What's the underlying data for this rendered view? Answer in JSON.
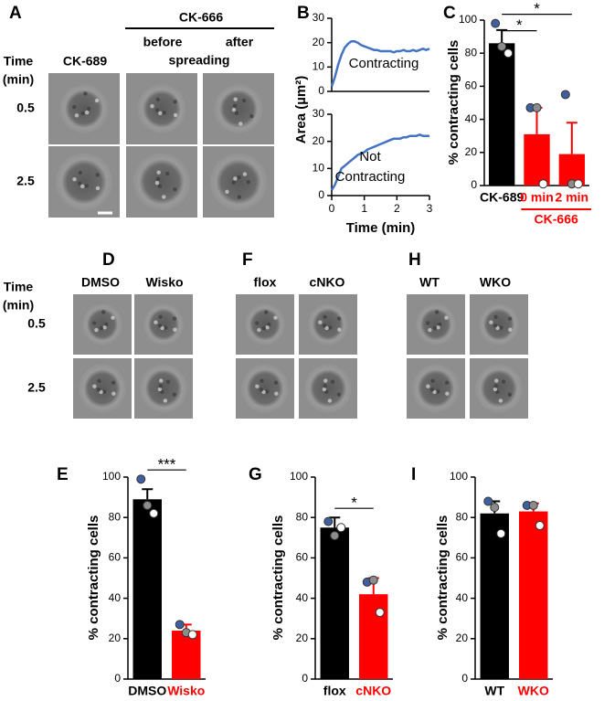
{
  "chart_data": [
    {
      "type": "line",
      "panel": "B",
      "ylabel": "Area (µm²)",
      "annotation": [
        "Contracting"
      ],
      "color": "#4472c4",
      "x": [
        0,
        0.1,
        0.2,
        0.3,
        0.4,
        0.5,
        0.6,
        0.7,
        0.8,
        0.9,
        1,
        1.1,
        1.2,
        1.3,
        1.4,
        1.5,
        1.6,
        1.7,
        1.8,
        1.9,
        2,
        2.1,
        2.2,
        2.3,
        2.4,
        2.5,
        2.6,
        2.7,
        2.8,
        2.9,
        3
      ],
      "values": [
        2,
        6,
        11,
        15,
        18,
        19.5,
        20.5,
        20.5,
        20,
        19,
        18.5,
        18,
        17.5,
        17,
        17,
        16.5,
        16.5,
        16.5,
        16.5,
        16,
        16.5,
        16.5,
        17,
        16.5,
        16.5,
        17,
        16.5,
        17,
        17.5,
        17,
        17.5
      ],
      "xlim": [
        0,
        3
      ],
      "ylim": [
        0,
        30
      ],
      "yticks": [
        0,
        10,
        20,
        30
      ]
    },
    {
      "type": "line",
      "xlabel": "Time (min)",
      "annotation": [
        "Not",
        "Contracting"
      ],
      "color": "#4472c4",
      "x": [
        0,
        0.1,
        0.2,
        0.3,
        0.4,
        0.5,
        0.6,
        0.7,
        0.8,
        0.9,
        1,
        1.1,
        1.2,
        1.3,
        1.4,
        1.5,
        1.6,
        1.7,
        1.8,
        1.9,
        2,
        2.1,
        2.2,
        2.3,
        2.4,
        2.5,
        2.6,
        2.7,
        2.8,
        2.9,
        3
      ],
      "values": [
        2,
        4,
        7,
        10,
        11,
        12,
        13,
        14,
        15,
        15.5,
        16,
        17,
        17.5,
        18,
        18.5,
        19,
        19.5,
        20,
        20.5,
        21,
        21,
        21,
        21.5,
        21.5,
        22,
        22,
        22,
        22.5,
        22,
        22,
        22
      ],
      "xlim": [
        0,
        3
      ],
      "ylim": [
        0,
        30
      ],
      "xticks": [
        0,
        1,
        2,
        3
      ],
      "yticks": [
        0,
        10,
        20,
        30
      ]
    },
    {
      "type": "bar",
      "panel": "C",
      "ylabel": "% contracting cells",
      "categories": [
        "CK-689",
        "0 min",
        "2 min"
      ],
      "values": [
        86,
        31,
        19
      ],
      "errors": [
        8,
        16,
        19
      ],
      "colors": [
        "#000000",
        "#ff0000",
        "#ff0000"
      ],
      "replicates": [
        {
          "color": "#3f5f9f",
          "values": [
            98,
            47,
            55
          ]
        },
        {
          "color": "#8c8c8c",
          "values": [
            84,
            47,
            1
          ]
        },
        {
          "color": "#ffffff",
          "values": [
            80,
            1,
            1
          ]
        }
      ],
      "significance": [
        {
          "label": "*",
          "pair": [
            0,
            2
          ]
        },
        {
          "label": "*",
          "pair": [
            0,
            1
          ]
        }
      ],
      "group": {
        "label": "CK-666",
        "from": 1,
        "to": 2
      },
      "ylim": [
        0,
        100
      ],
      "yticks": [
        0,
        20,
        40,
        60,
        80,
        100
      ]
    },
    {
      "type": "bar",
      "panel": "E",
      "ylabel": "% contracting cells",
      "categories": [
        "DMSO",
        "Wisko"
      ],
      "values": [
        89,
        24
      ],
      "errors": [
        5,
        3
      ],
      "colors": [
        "#000000",
        "#ff0000"
      ],
      "replicates": [
        {
          "color": "#3f5f9f",
          "values": [
            99,
            27
          ]
        },
        {
          "color": "#8c8c8c",
          "values": [
            86,
            23
          ]
        },
        {
          "color": "#ffffff",
          "values": [
            82,
            22
          ]
        }
      ],
      "significance": [
        {
          "label": "***",
          "pair": [
            0,
            1
          ]
        }
      ],
      "ylim": [
        0,
        100
      ],
      "yticks": [
        0,
        20,
        40,
        60,
        80,
        100
      ]
    },
    {
      "type": "bar",
      "panel": "G",
      "ylabel": "% contracting cells",
      "categories": [
        "flox",
        "cNKO"
      ],
      "values": [
        75,
        42
      ],
      "errors": [
        5,
        8
      ],
      "colors": [
        "#000000",
        "#ff0000"
      ],
      "replicates": [
        {
          "color": "#3f5f9f",
          "values": [
            78,
            48
          ]
        },
        {
          "color": "#8c8c8c",
          "values": [
            71,
            49
          ]
        },
        {
          "color": "#ffffff",
          "values": [
            75,
            33
          ]
        }
      ],
      "significance": [
        {
          "label": "*",
          "pair": [
            0,
            1
          ]
        }
      ],
      "ylim": [
        0,
        100
      ],
      "yticks": [
        0,
        20,
        40,
        60,
        80,
        100
      ]
    },
    {
      "type": "bar",
      "panel": "I",
      "ylabel": "% contracting cells",
      "categories": [
        "WT",
        "WKO"
      ],
      "values": [
        82,
        83
      ],
      "errors": [
        6,
        4
      ],
      "colors": [
        "#000000",
        "#ff0000"
      ],
      "replicates": [
        {
          "color": "#3f5f9f",
          "values": [
            88,
            86
          ]
        },
        {
          "color": "#8c8c8c",
          "values": [
            85,
            86
          ]
        },
        {
          "color": "#ffffff",
          "values": [
            72,
            76
          ]
        }
      ],
      "significance": [],
      "ylim": [
        0,
        100
      ],
      "yticks": [
        0,
        20,
        40,
        60,
        80,
        100
      ]
    }
  ],
  "image_panels": [
    {
      "letter": "A",
      "time_label": [
        "Time",
        "(min)"
      ],
      "headers": [
        "CK-689"
      ],
      "group": "CK-666",
      "subheaders": [
        "before",
        "after"
      ],
      "subtitle": "spreading",
      "row_labels": [
        "0.5",
        "2.5"
      ]
    },
    {
      "letter": "D",
      "time_label": [
        "Time",
        "(min)"
      ],
      "headers": [
        "DMSO",
        "Wisko"
      ],
      "row_labels": [
        "0.5",
        "2.5"
      ]
    },
    {
      "letter": "F",
      "headers": [
        "flox",
        "cNKO"
      ]
    },
    {
      "letter": "H",
      "headers": [
        "WT",
        "WKO"
      ]
    }
  ]
}
